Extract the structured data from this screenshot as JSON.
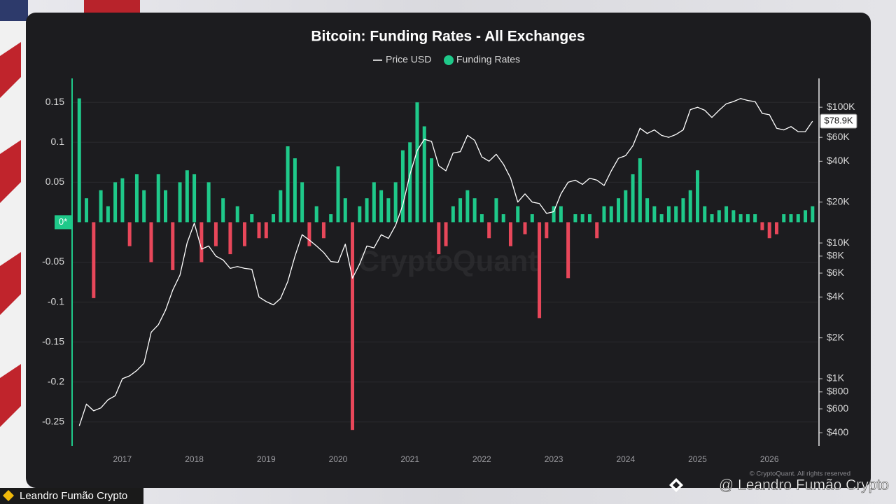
{
  "chart_data": {
    "type": "bar-line",
    "title": "Bitcoin: Funding Rates - All Exchanges",
    "watermark": "CryptoQuant",
    "copyright": "© CryptoQuant. All rights reserved",
    "x": [
      2016.4,
      2016.5,
      2016.6,
      2016.7,
      2016.8,
      2016.9,
      2017.0,
      2017.1,
      2017.2,
      2017.3,
      2017.4,
      2017.5,
      2017.6,
      2017.7,
      2017.8,
      2017.9,
      2018.0,
      2018.1,
      2018.2,
      2018.3,
      2018.4,
      2018.5,
      2018.6,
      2018.7,
      2018.8,
      2018.9,
      2019.0,
      2019.1,
      2019.2,
      2019.3,
      2019.4,
      2019.5,
      2019.6,
      2019.7,
      2019.8,
      2019.9,
      2020.0,
      2020.1,
      2020.2,
      2020.3,
      2020.4,
      2020.5,
      2020.6,
      2020.7,
      2020.8,
      2020.9,
      2021.0,
      2021.1,
      2021.2,
      2021.3,
      2021.4,
      2021.5,
      2021.6,
      2021.7,
      2021.8,
      2021.9,
      2022.0,
      2022.1,
      2022.2,
      2022.3,
      2022.4,
      2022.5,
      2022.6,
      2022.7,
      2022.8,
      2022.9,
      2023.0,
      2023.1,
      2023.2,
      2023.3,
      2023.4,
      2023.5,
      2023.6,
      2023.7,
      2023.8,
      2023.9,
      2024.0,
      2024.1,
      2024.2,
      2024.3,
      2024.4,
      2024.5,
      2024.6,
      2024.7,
      2024.8,
      2024.9,
      2025.0,
      2025.1,
      2025.2,
      2025.3,
      2025.4,
      2025.5,
      2025.6,
      2025.7,
      2025.8,
      2025.9,
      2026.0,
      2026.1,
      2026.2,
      2026.3,
      2026.4,
      2026.5,
      2026.6
    ],
    "series": [
      {
        "name": "Price USD",
        "color": "#ffffff",
        "axis": "y2",
        "values": [
          450,
          650,
          580,
          610,
          700,
          750,
          1000,
          1050,
          1150,
          1300,
          2200,
          2500,
          3200,
          4500,
          5800,
          10000,
          14000,
          9000,
          9500,
          8000,
          7500,
          6500,
          6700,
          6500,
          6400,
          4000,
          3700,
          3500,
          3900,
          5200,
          8000,
          11500,
          10500,
          9500,
          8500,
          7300,
          7200,
          9800,
          5500,
          7000,
          9500,
          9200,
          11500,
          10800,
          13500,
          19000,
          32000,
          48000,
          58000,
          56000,
          37000,
          34000,
          46000,
          47000,
          62000,
          57000,
          43000,
          40000,
          45000,
          38000,
          30000,
          20000,
          23000,
          20000,
          19500,
          16500,
          17000,
          23000,
          28000,
          29000,
          27000,
          30000,
          29000,
          26500,
          34000,
          42000,
          44000,
          52000,
          70000,
          64000,
          68000,
          62000,
          60000,
          63000,
          68000,
          96000,
          100000,
          95000,
          84000,
          95000,
          106000,
          110000,
          116000,
          112000,
          110000,
          90000,
          88000,
          70000,
          68000,
          72000,
          66000,
          66000,
          78900
        ]
      },
      {
        "name": "Funding Rates",
        "color": "#1fc98a",
        "negative_color": "#e8475a",
        "values": [
          0.155,
          0.03,
          -0.095,
          0.04,
          0.02,
          0.05,
          0.055,
          -0.03,
          0.06,
          0.04,
          -0.05,
          0.06,
          0.04,
          -0.06,
          0.05,
          0.065,
          0.06,
          -0.05,
          0.05,
          -0.03,
          0.03,
          -0.04,
          0.02,
          -0.03,
          0.01,
          -0.02,
          -0.02,
          0.01,
          0.04,
          0.095,
          0.08,
          0.05,
          -0.03,
          0.02,
          -0.02,
          0.01,
          0.07,
          0.03,
          -0.26,
          0.02,
          0.03,
          0.05,
          0.04,
          0.03,
          0.05,
          0.09,
          0.1,
          0.15,
          0.12,
          0.08,
          -0.04,
          -0.03,
          0.02,
          0.03,
          0.04,
          0.03,
          0.01,
          -0.02,
          0.03,
          0.01,
          -0.03,
          0.02,
          -0.015,
          0.01,
          -0.12,
          -0.02,
          0.02,
          0.02,
          -0.07,
          0.01,
          0.01,
          0.01,
          -0.02,
          0.02,
          0.02,
          0.03,
          0.04,
          0.06,
          0.08,
          0.03,
          0.02,
          0.01,
          0.02,
          0.02,
          0.03,
          0.04,
          0.065,
          0.02,
          0.01,
          0.015,
          0.02,
          0.015,
          0.01,
          0.01,
          0.01,
          -0.01,
          -0.02,
          -0.015,
          0.01,
          0.01,
          0.01,
          0.015,
          0.02
        ]
      }
    ],
    "xlim": [
      2016.3,
      2026.67
    ],
    "xticks": [
      2017,
      2018,
      2019,
      2020,
      2021,
      2022,
      2023,
      2024,
      2025,
      2026
    ],
    "ylim": [
      -0.28,
      0.18
    ],
    "yticks": [
      0.15,
      0.1,
      0.05,
      -0.05,
      -0.1,
      -0.15,
      -0.2,
      -0.25
    ],
    "y2lim": [
      320,
      163000
    ],
    "y2_log": true,
    "y2ticks": [
      {
        "value": 100000,
        "label": "$100K"
      },
      {
        "value": 60000,
        "label": "$60K"
      },
      {
        "value": 40000,
        "label": "$40K"
      },
      {
        "value": 20000,
        "label": "$20K"
      },
      {
        "value": 10000,
        "label": "$10K"
      },
      {
        "value": 8000,
        "label": "$8K"
      },
      {
        "value": 6000,
        "label": "$6K"
      },
      {
        "value": 4000,
        "label": "$4K"
      },
      {
        "value": 2000,
        "label": "$2K"
      },
      {
        "value": 1000,
        "label": "$1K"
      },
      {
        "value": 800,
        "label": "$800"
      },
      {
        "value": 600,
        "label": "$600"
      },
      {
        "value": 400,
        "label": "$400"
      }
    ],
    "grid": true,
    "crosshair": {
      "value": 0,
      "label": "0*"
    },
    "price_marker": {
      "value": 78900,
      "label": "$78.9K"
    }
  },
  "overlay": {
    "channel": "Leandro Fumão Crypto",
    "handle": "@ Leandro Fumão Crypto"
  }
}
